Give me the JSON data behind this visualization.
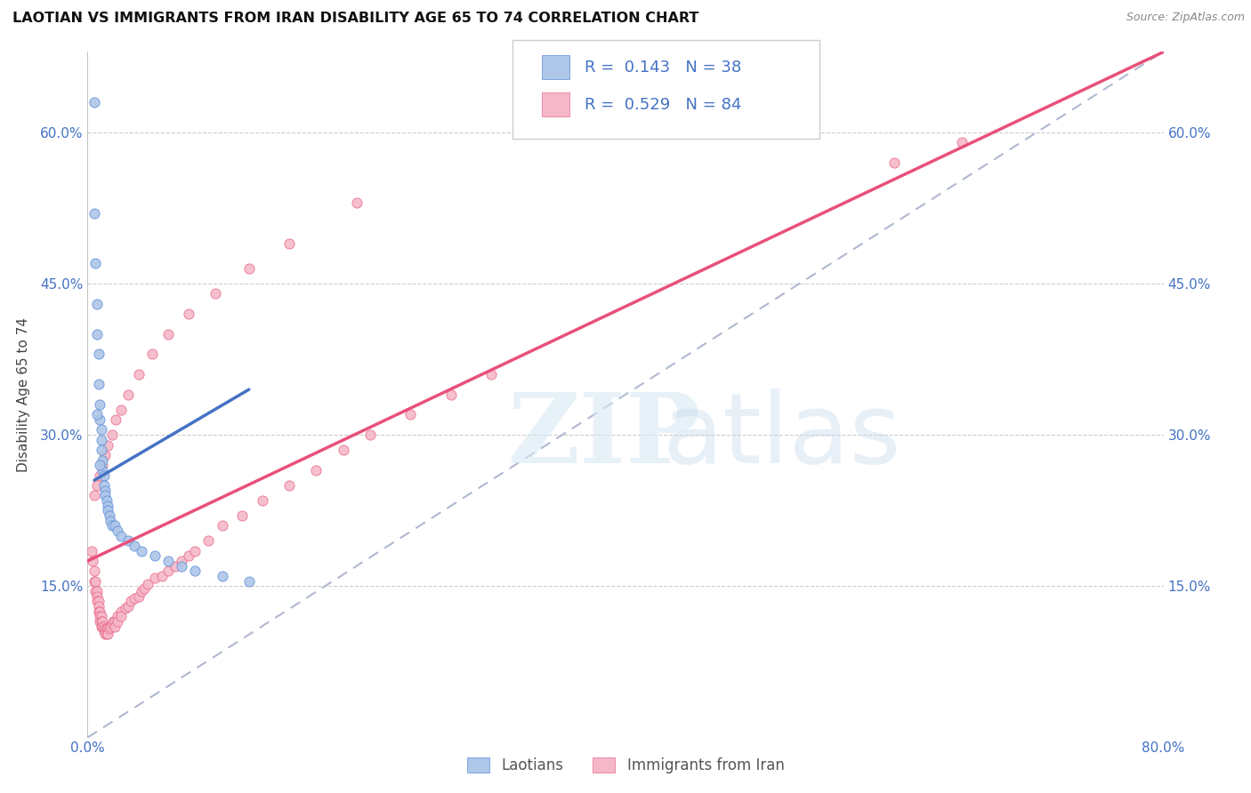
{
  "title": "LAOTIAN VS IMMIGRANTS FROM IRAN DISABILITY AGE 65 TO 74 CORRELATION CHART",
  "source": "Source: ZipAtlas.com",
  "ylabel": "Disability Age 65 to 74",
  "xlim": [
    0.0,
    0.8
  ],
  "ylim": [
    0.0,
    0.68
  ],
  "xtick_values": [
    0.0,
    0.8
  ],
  "xtick_labels": [
    "0.0%",
    "80.0%"
  ],
  "ytick_values": [
    0.15,
    0.3,
    0.45,
    0.6
  ],
  "ytick_labels": [
    "15.0%",
    "30.0%",
    "45.0%",
    "60.0%"
  ],
  "laotian_color": "#aec6e8",
  "iran_color": "#f5b8c8",
  "laotian_edge_color": "#5b8dd9",
  "iran_edge_color": "#e8698a",
  "laotian_line_color": "#4472c4",
  "iran_line_color": "#e8507a",
  "trend_dash_color": "#b0b8d0",
  "R_laotian": 0.143,
  "N_laotian": 38,
  "R_iran": 0.529,
  "N_iran": 84,
  "laotian_x": [
    0.005,
    0.005,
    0.006,
    0.007,
    0.007,
    0.008,
    0.008,
    0.009,
    0.009,
    0.01,
    0.01,
    0.01,
    0.011,
    0.011,
    0.012,
    0.012,
    0.013,
    0.013,
    0.014,
    0.015,
    0.015,
    0.016,
    0.017,
    0.018,
    0.02,
    0.022,
    0.025,
    0.03,
    0.035,
    0.04,
    0.05,
    0.06,
    0.07,
    0.08,
    0.1,
    0.12,
    0.007,
    0.009
  ],
  "laotian_y": [
    0.63,
    0.52,
    0.47,
    0.43,
    0.4,
    0.38,
    0.35,
    0.33,
    0.315,
    0.305,
    0.295,
    0.285,
    0.275,
    0.265,
    0.26,
    0.25,
    0.245,
    0.24,
    0.235,
    0.23,
    0.225,
    0.22,
    0.215,
    0.21,
    0.21,
    0.205,
    0.2,
    0.195,
    0.19,
    0.185,
    0.18,
    0.175,
    0.17,
    0.165,
    0.16,
    0.155,
    0.32,
    0.27
  ],
  "iran_x": [
    0.003,
    0.004,
    0.005,
    0.005,
    0.006,
    0.006,
    0.007,
    0.007,
    0.007,
    0.008,
    0.008,
    0.008,
    0.009,
    0.009,
    0.009,
    0.01,
    0.01,
    0.01,
    0.011,
    0.011,
    0.012,
    0.012,
    0.013,
    0.013,
    0.014,
    0.014,
    0.015,
    0.015,
    0.016,
    0.017,
    0.018,
    0.019,
    0.02,
    0.02,
    0.022,
    0.022,
    0.025,
    0.025,
    0.028,
    0.03,
    0.032,
    0.035,
    0.038,
    0.04,
    0.042,
    0.045,
    0.05,
    0.055,
    0.06,
    0.065,
    0.07,
    0.075,
    0.08,
    0.09,
    0.1,
    0.115,
    0.13,
    0.15,
    0.17,
    0.19,
    0.21,
    0.24,
    0.27,
    0.3,
    0.005,
    0.007,
    0.009,
    0.011,
    0.013,
    0.015,
    0.018,
    0.021,
    0.025,
    0.03,
    0.038,
    0.048,
    0.06,
    0.075,
    0.095,
    0.12,
    0.15,
    0.2,
    0.65,
    0.6
  ],
  "iran_y": [
    0.185,
    0.175,
    0.165,
    0.155,
    0.155,
    0.145,
    0.145,
    0.14,
    0.135,
    0.135,
    0.13,
    0.125,
    0.125,
    0.12,
    0.115,
    0.12,
    0.115,
    0.11,
    0.115,
    0.11,
    0.11,
    0.105,
    0.108,
    0.103,
    0.108,
    0.103,
    0.108,
    0.103,
    0.108,
    0.11,
    0.112,
    0.115,
    0.115,
    0.11,
    0.12,
    0.115,
    0.125,
    0.12,
    0.128,
    0.13,
    0.135,
    0.138,
    0.14,
    0.145,
    0.148,
    0.152,
    0.158,
    0.16,
    0.165,
    0.17,
    0.175,
    0.18,
    0.185,
    0.195,
    0.21,
    0.22,
    0.235,
    0.25,
    0.265,
    0.285,
    0.3,
    0.32,
    0.34,
    0.36,
    0.24,
    0.25,
    0.26,
    0.27,
    0.28,
    0.29,
    0.3,
    0.315,
    0.325,
    0.34,
    0.36,
    0.38,
    0.4,
    0.42,
    0.44,
    0.465,
    0.49,
    0.53,
    0.59,
    0.57
  ]
}
